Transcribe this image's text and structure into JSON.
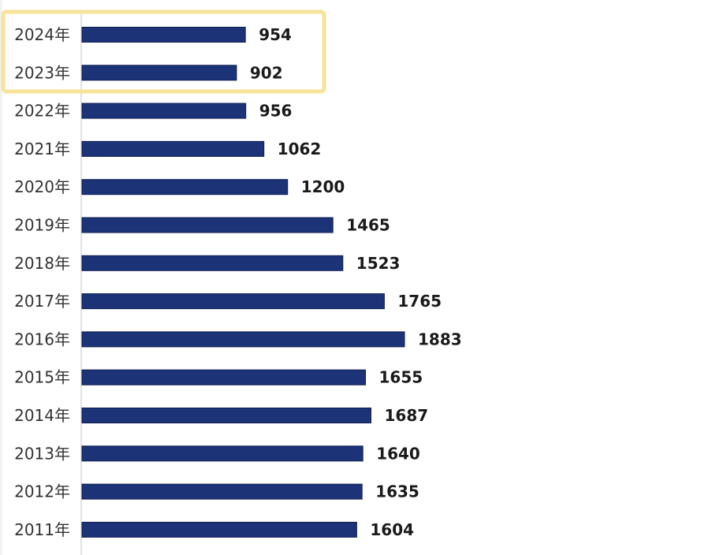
{
  "chart_data": {
    "type": "bar",
    "orientation": "horizontal",
    "categories": [
      "2024年",
      "2023年",
      "2022年",
      "2021年",
      "2020年",
      "2019年",
      "2018年",
      "2017年",
      "2016年",
      "2015年",
      "2014年",
      "2013年",
      "2012年",
      "2011年"
    ],
    "values": [
      954,
      902,
      956,
      1062,
      1200,
      1465,
      1523,
      1765,
      1883,
      1655,
      1687,
      1640,
      1635,
      1604
    ],
    "xlim": [
      0,
      3600
    ],
    "grid": false,
    "legend": "none",
    "highlighted_categories": [
      "2024年",
      "2023年"
    ]
  },
  "colors": {
    "bar": "#1c3378",
    "bar_stroke": "#0f1e4f",
    "highlight_border": "#f7e39a",
    "axis_line": "#d8d8d8"
  }
}
